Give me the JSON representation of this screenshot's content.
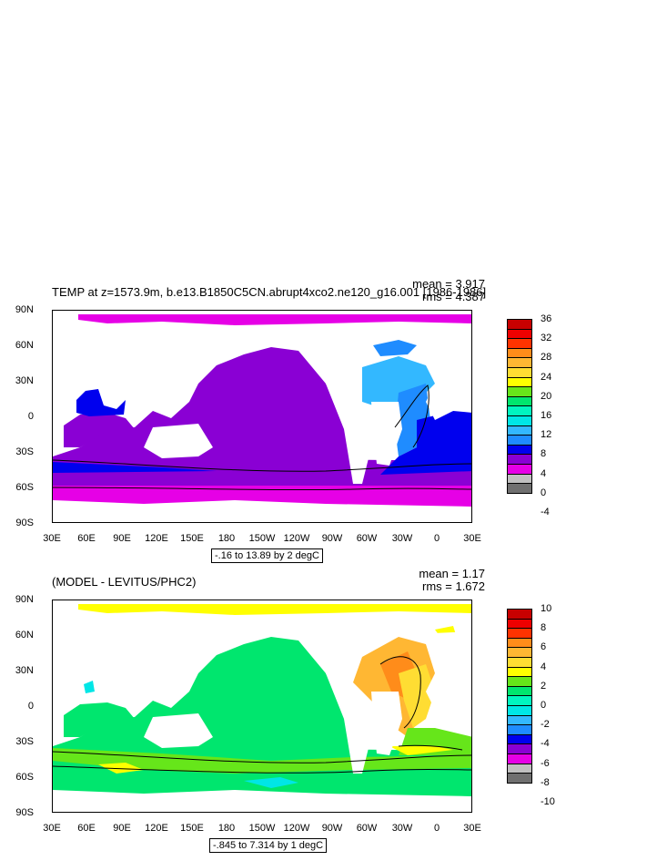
{
  "panels": [
    {
      "id": "top",
      "title": "TEMP at z=1573.9m, b.e13.B1850C5CN.abrupt4xco2.ne120_g16.001 [1986-1986]",
      "mean_text": "mean = 3.917",
      "rms_text": "rms = 4.387",
      "range_text": "-.16 to 13.89 by 2 degC",
      "lat_labels": [
        "90N",
        "60N",
        "30N",
        "0",
        "30S",
        "60S",
        "90S"
      ],
      "lon_labels": [
        "30E",
        "60E",
        "90E",
        "120E",
        "150E",
        "180",
        "150W",
        "120W",
        "90W",
        "60W",
        "30W",
        "0",
        "30E"
      ],
      "colorbar_labels": [
        "36",
        "32",
        "28",
        "24",
        "20",
        "16",
        "12",
        "8",
        "4",
        "0",
        "-4"
      ],
      "colorbar_colors": [
        "#c80000",
        "#ee0000",
        "#ff3300",
        "#ff8c1a",
        "#ffb733",
        "#ffdd33",
        "#ffff00",
        "#66e61a",
        "#00e66e",
        "#00f5c0",
        "#00e6e6",
        "#33b8ff",
        "#1f8cff",
        "#0000ee",
        "#8a00d4",
        "#e600e6",
        "#c0c0c0",
        "#707070"
      ]
    },
    {
      "id": "bottom",
      "title": "(MODEL - LEVITUS/PHC2)",
      "mean_text": "mean = 1.17",
      "rms_text": "rms = 1.672",
      "range_text": "-.845 to 7.314 by 1 degC",
      "lat_labels": [
        "90N",
        "60N",
        "30N",
        "0",
        "30S",
        "60S",
        "90S"
      ],
      "lon_labels": [
        "30E",
        "60E",
        "90E",
        "120E",
        "150E",
        "180",
        "150W",
        "120W",
        "90W",
        "60W",
        "30W",
        "0",
        "30E"
      ],
      "colorbar_labels": [
        "10",
        "8",
        "6",
        "4",
        "2",
        "0",
        "-2",
        "-4",
        "-6",
        "-8",
        "-10"
      ],
      "colorbar_colors": [
        "#c80000",
        "#ee0000",
        "#ff3300",
        "#ff8c1a",
        "#ffb733",
        "#ffdd33",
        "#ffff00",
        "#66e61a",
        "#00e66e",
        "#00f5c0",
        "#00e6e6",
        "#33b8ff",
        "#1f8cff",
        "#0000ee",
        "#8a00d4",
        "#e600e6",
        "#c0c0c0",
        "#707070"
      ]
    }
  ],
  "field_colors": {
    "top_background_ocean": "#8a00d4",
    "top_polar": "#e600e6",
    "top_atlantic_north": "#33b8ff",
    "top_atlantic_mid": "#1f8cff",
    "top_deep_blue": "#0000ee",
    "bottom_background_ocean": "#00e66e",
    "bottom_arctic": "#ffff00",
    "bottom_atlantic": "#ffb733",
    "bottom_band": "#66e61a",
    "bottom_cyan": "#00e6e6"
  }
}
